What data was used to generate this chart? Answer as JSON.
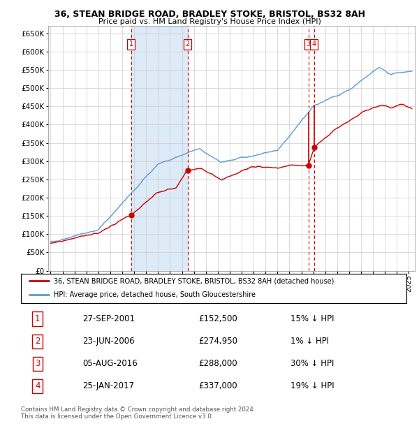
{
  "title1": "36, STEAN BRIDGE ROAD, BRADLEY STOKE, BRISTOL, BS32 8AH",
  "title2": "Price paid vs. HM Land Registry's House Price Index (HPI)",
  "legend_line1": "36, STEAN BRIDGE ROAD, BRADLEY STOKE, BRISTOL, BS32 8AH (detached house)",
  "legend_line2": "HPI: Average price, detached house, South Gloucestershire",
  "footer": "Contains HM Land Registry data © Crown copyright and database right 2024.\nThis data is licensed under the Open Government Licence v3.0.",
  "transactions": [
    {
      "num": 1,
      "date": "27-SEP-2001",
      "date_x": 2001.74,
      "price": 152500,
      "hpi_pct": "15% ↓ HPI"
    },
    {
      "num": 2,
      "date": "23-JUN-2006",
      "date_x": 2006.47,
      "price": 274950,
      "hpi_pct": "1% ↓ HPI"
    },
    {
      "num": 3,
      "date": "05-AUG-2016",
      "date_x": 2016.59,
      "price": 288000,
      "hpi_pct": "30% ↓ HPI"
    },
    {
      "num": 4,
      "date": "25-JAN-2017",
      "date_x": 2017.07,
      "price": 337000,
      "hpi_pct": "19% ↓ HPI"
    }
  ],
  "shade_start": 2001.74,
  "shade_end": 2006.47,
  "red_color": "#cc0000",
  "blue_color": "#5b9bd5",
  "ylim": [
    0,
    670000
  ],
  "xlim_start": 1994.8,
  "xlim_end": 2025.5,
  "yticks": [
    0,
    50000,
    100000,
    150000,
    200000,
    250000,
    300000,
    350000,
    400000,
    450000,
    500000,
    550000,
    600000,
    650000
  ],
  "xticks": [
    1995,
    1996,
    1997,
    1998,
    1999,
    2000,
    2001,
    2002,
    2003,
    2004,
    2005,
    2006,
    2007,
    2008,
    2009,
    2010,
    2011,
    2012,
    2013,
    2014,
    2015,
    2016,
    2017,
    2018,
    2019,
    2020,
    2021,
    2022,
    2023,
    2024,
    2025
  ],
  "table_rows": [
    {
      "num": "1",
      "date": "27-SEP-2001",
      "price": "£152,500",
      "pct": "15% ↓ HPI"
    },
    {
      "num": "2",
      "date": "23-JUN-2006",
      "price": "£274,950",
      "pct": "1% ↓ HPI"
    },
    {
      "num": "3",
      "date": "05-AUG-2016",
      "price": "£288,000",
      "pct": "30% ↓ HPI"
    },
    {
      "num": "4",
      "date": "25-JAN-2017",
      "price": "£337,000",
      "pct": "19% ↓ HPI"
    }
  ]
}
